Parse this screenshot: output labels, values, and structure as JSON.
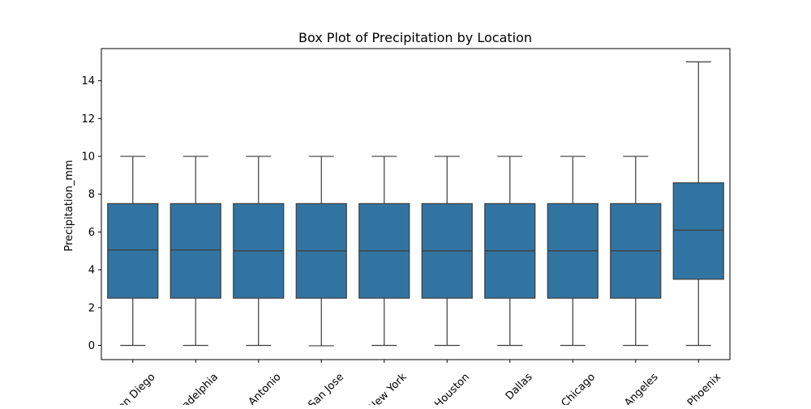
{
  "chart_data": {
    "type": "box",
    "title": "Box Plot of Precipitation by Location",
    "xlabel": "",
    "ylabel": "Precipitation_mm",
    "ylim": [
      -0.75,
      15.7
    ],
    "yticks": [
      0,
      2,
      4,
      6,
      8,
      10,
      12,
      14
    ],
    "grid": false,
    "box_color": "#3274a1",
    "line_color": "#3d3d3d",
    "categories": [
      "San Diego",
      "Philadelphia",
      "San Antonio",
      "San Jose",
      "New York",
      "Houston",
      "Dallas",
      "Chicago",
      "Los Angeles",
      "Phoenix"
    ],
    "visible_tick_labels": [
      "an Diego",
      "adelphia",
      "Antonio",
      "San Jose",
      "New York",
      "Houston",
      "Dallas",
      "Chicago",
      "Angeles",
      "Phoenix"
    ],
    "boxes": [
      {
        "category": "San Diego",
        "min": 0.0,
        "q1": 2.5,
        "median": 5.05,
        "q3": 7.5,
        "max": 10.0
      },
      {
        "category": "Philadelphia",
        "min": 0.0,
        "q1": 2.5,
        "median": 5.05,
        "q3": 7.5,
        "max": 10.0
      },
      {
        "category": "San Antonio",
        "min": 0.0,
        "q1": 2.5,
        "median": 5.0,
        "q3": 7.5,
        "max": 10.0
      },
      {
        "category": "San Jose",
        "min": -0.02,
        "q1": 2.5,
        "median": 5.0,
        "q3": 7.5,
        "max": 10.0
      },
      {
        "category": "New York",
        "min": 0.0,
        "q1": 2.5,
        "median": 5.0,
        "q3": 7.5,
        "max": 10.0
      },
      {
        "category": "Houston",
        "min": 0.0,
        "q1": 2.5,
        "median": 5.0,
        "q3": 7.5,
        "max": 10.0
      },
      {
        "category": "Dallas",
        "min": 0.0,
        "q1": 2.5,
        "median": 5.0,
        "q3": 7.5,
        "max": 10.0
      },
      {
        "category": "Chicago",
        "min": 0.0,
        "q1": 2.5,
        "median": 5.0,
        "q3": 7.5,
        "max": 10.0
      },
      {
        "category": "Los Angeles",
        "min": 0.0,
        "q1": 2.5,
        "median": 5.0,
        "q3": 7.5,
        "max": 10.0
      },
      {
        "category": "Phoenix",
        "min": 0.0,
        "q1": 3.5,
        "median": 6.1,
        "q3": 8.6,
        "max": 15.0
      }
    ]
  }
}
